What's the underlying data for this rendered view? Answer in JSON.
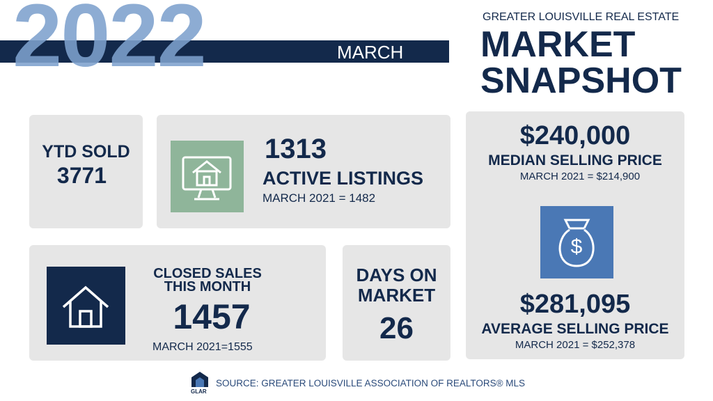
{
  "year": "2022",
  "month": "MARCH",
  "header": {
    "kicker": "GREATER LOUISVILLE REAL ESTATE",
    "title": [
      "MARKET",
      "SNAPSHOT"
    ]
  },
  "ytd": {
    "label": "YTD SOLD",
    "value": "3771"
  },
  "active": {
    "value": "1313",
    "label": "ACTIVE LISTINGS",
    "compare": "MARCH 2021 = 1482"
  },
  "median": {
    "value": "$240,000",
    "label": "MEDIAN SELLING PRICE",
    "compare": "MARCH 2021 = $214,900"
  },
  "closed": {
    "label": [
      "CLOSED SALES",
      "THIS MONTH"
    ],
    "value": "1457",
    "compare": "MARCH 2021=1555"
  },
  "days": {
    "label": [
      "DAYS ON",
      "MARKET"
    ],
    "value": "26"
  },
  "average": {
    "value": "$281,095",
    "label": "AVERAGE SELLING PRICE",
    "compare": "MARCH 2021 = $252,378"
  },
  "source": "SOURCE: GREATER LOUISVILLE ASSOCIATION OF REALTORS® MLS",
  "logo": "GLAR"
}
